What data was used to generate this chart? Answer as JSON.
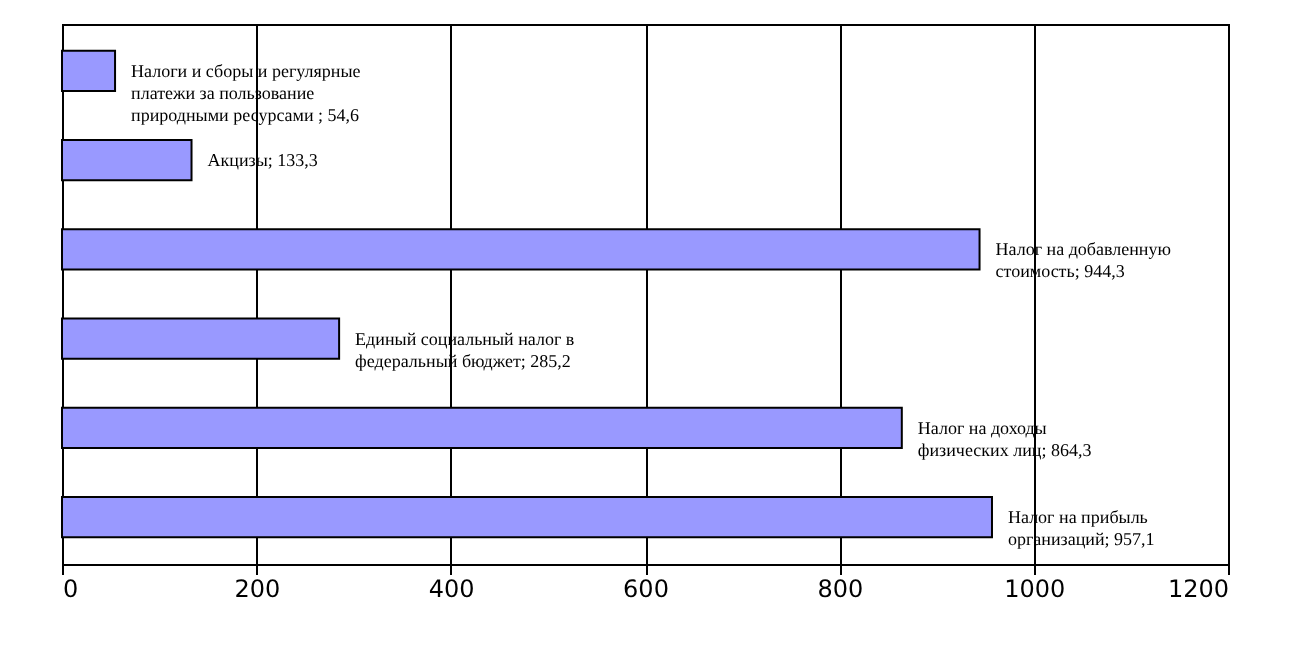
{
  "chart_data": {
    "type": "bar",
    "orientation": "horizontal",
    "categories": [
      null,
      null,
      null,
      null,
      null,
      null
    ],
    "values": [
      54.6,
      133.3,
      944.3,
      285.2,
      864.3,
      957.1
    ],
    "color": "#9999ff",
    "value_labels": [
      "Налоги и сборы и регулярные\nплатежи за пользование\nприродными ресурсами ; 54,6",
      "Акцизы; 133,3",
      "Налог на добавленную\nстоимость; 944,3",
      "Единый социальный налог в\nфедеральный бюджет; 285,2",
      "Налог на доходы\nфизических лиц; 864,3",
      "Налог на прибыль\nорганизаций; 957,1"
    ],
    "xlim": [
      0,
      1200
    ],
    "xticks": [
      0,
      200,
      400,
      600,
      800,
      1000,
      1200
    ],
    "grid": "x"
  }
}
